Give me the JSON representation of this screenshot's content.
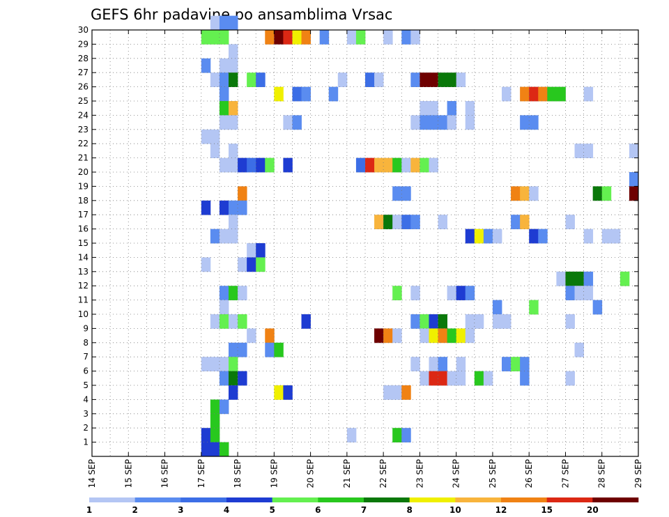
{
  "chart_data": {
    "type": "heatmap",
    "title": "GEFS 6hr padavine po ansamblima Vrsac",
    "xlabel": "",
    "ylabel": "",
    "x_tick_labels": [
      "14 SEP",
      "15 SEP",
      "16 SEP",
      "17 SEP",
      "18 SEP",
      "19 SEP",
      "20 SEP",
      "21 SEP",
      "22 SEP",
      "23 SEP",
      "24 SEP",
      "25 SEP",
      "26 SEP",
      "27 SEP",
      "28 SEP",
      "29 SEP"
    ],
    "xlim_days": [
      14,
      29
    ],
    "y_tick_labels": [
      "1",
      "2",
      "3",
      "4",
      "5",
      "6",
      "7",
      "8",
      "9",
      "10",
      "11",
      "12",
      "13",
      "14",
      "15",
      "16",
      "17",
      "18",
      "19",
      "20",
      "21",
      "22",
      "23",
      "24",
      "25",
      "26",
      "27",
      "28",
      "29",
      "30"
    ],
    "ylim": [
      0,
      30
    ],
    "grid": true,
    "legend": {
      "placement": "bottom",
      "bounds": [
        1,
        2,
        3,
        4,
        5,
        6,
        7,
        8,
        10,
        12,
        15,
        20
      ],
      "labels": [
        "1",
        "2",
        "3",
        "4",
        "5",
        "6",
        "7",
        "8",
        "10",
        "12",
        "15",
        "20"
      ],
      "colors": [
        "#b4c6f4",
        "#5a8cf0",
        "#3c6ee6",
        "#1e3cd2",
        "#64f050",
        "#28c81e",
        "#0a780a",
        "#f0f000",
        "#f8b43c",
        "#f08214",
        "#dc2814",
        "#6e0000"
      ]
    },
    "cells": [
      [
        30,
        17.25,
        0
      ],
      [
        30,
        17.5,
        1
      ],
      [
        30,
        17.75,
        1
      ],
      [
        29,
        17,
        4
      ],
      [
        29,
        17.25,
        4
      ],
      [
        29,
        17.5,
        4
      ],
      [
        29,
        18.75,
        9
      ],
      [
        29,
        19,
        11
      ],
      [
        29,
        19.25,
        10
      ],
      [
        29,
        19.5,
        7
      ],
      [
        29,
        19.75,
        9
      ],
      [
        29,
        20.25,
        1
      ],
      [
        29,
        21,
        0
      ],
      [
        29,
        21.25,
        4
      ],
      [
        29,
        22,
        0
      ],
      [
        29,
        22.5,
        1
      ],
      [
        29,
        22.75,
        0
      ],
      [
        28,
        17.75,
        0
      ],
      [
        27,
        17,
        1
      ],
      [
        27,
        17.5,
        0
      ],
      [
        27,
        17.75,
        0
      ],
      [
        26,
        17.25,
        0
      ],
      [
        26,
        17.5,
        1
      ],
      [
        26,
        17.75,
        6
      ],
      [
        26,
        18.25,
        4
      ],
      [
        26,
        18.5,
        2
      ],
      [
        26,
        20.75,
        0
      ],
      [
        26,
        21.5,
        2
      ],
      [
        26,
        21.75,
        0
      ],
      [
        26,
        22.75,
        1
      ],
      [
        26,
        23,
        11
      ],
      [
        26,
        23.25,
        11
      ],
      [
        26,
        23.5,
        6
      ],
      [
        26,
        23.75,
        6
      ],
      [
        26,
        24,
        0
      ],
      [
        25,
        17.5,
        1
      ],
      [
        25,
        19,
        7
      ],
      [
        25,
        19.5,
        2
      ],
      [
        25,
        19.75,
        1
      ],
      [
        25,
        20.5,
        1
      ],
      [
        25,
        25.25,
        0
      ],
      [
        25,
        25.75,
        9
      ],
      [
        25,
        26,
        10
      ],
      [
        25,
        26.25,
        9
      ],
      [
        25,
        26.5,
        5
      ],
      [
        25,
        26.75,
        5
      ],
      [
        25,
        27.5,
        0
      ],
      [
        24,
        17.5,
        5
      ],
      [
        24,
        17.75,
        8
      ],
      [
        24,
        23,
        0
      ],
      [
        24,
        23.25,
        0
      ],
      [
        24,
        23.75,
        1
      ],
      [
        24,
        24.25,
        0
      ],
      [
        23,
        17.5,
        0
      ],
      [
        23,
        17.75,
        0
      ],
      [
        23,
        19.25,
        0
      ],
      [
        23,
        19.5,
        1
      ],
      [
        23,
        22.75,
        0
      ],
      [
        23,
        23,
        1
      ],
      [
        23,
        23.25,
        1
      ],
      [
        23,
        23.5,
        1
      ],
      [
        23,
        23.75,
        0
      ],
      [
        23,
        24.25,
        0
      ],
      [
        23,
        25.75,
        1
      ],
      [
        23,
        26,
        1
      ],
      [
        22,
        17,
        0
      ],
      [
        22,
        17.25,
        0
      ],
      [
        21,
        17.25,
        0
      ],
      [
        21,
        17.75,
        0
      ],
      [
        21,
        27.25,
        0
      ],
      [
        21,
        27.5,
        0
      ],
      [
        21,
        28.75,
        0
      ],
      [
        20,
        17.5,
        0
      ],
      [
        20,
        17.75,
        0
      ],
      [
        20,
        18,
        3
      ],
      [
        20,
        18.25,
        2
      ],
      [
        20,
        18.5,
        3
      ],
      [
        20,
        18.75,
        4
      ],
      [
        20,
        19.25,
        3
      ],
      [
        20,
        21.25,
        2
      ],
      [
        20,
        21.5,
        10
      ],
      [
        20,
        21.75,
        8
      ],
      [
        20,
        22,
        8
      ],
      [
        20,
        22.25,
        5
      ],
      [
        20,
        22.5,
        0
      ],
      [
        20,
        22.75,
        8
      ],
      [
        20,
        23,
        4
      ],
      [
        20,
        23.25,
        0
      ],
      [
        19,
        28.75,
        1
      ],
      [
        18,
        18,
        9
      ],
      [
        18,
        22.25,
        1
      ],
      [
        18,
        22.5,
        1
      ],
      [
        18,
        25.5,
        9
      ],
      [
        18,
        25.75,
        8
      ],
      [
        18,
        26,
        0
      ],
      [
        18,
        27.75,
        6
      ],
      [
        18,
        28,
        4
      ],
      [
        18,
        28.75,
        11
      ],
      [
        17,
        17,
        3
      ],
      [
        17,
        17.5,
        3
      ],
      [
        17,
        17.75,
        1
      ],
      [
        17,
        18,
        1
      ],
      [
        16,
        17.75,
        0
      ],
      [
        16,
        21.75,
        8
      ],
      [
        16,
        22,
        6
      ],
      [
        16,
        22.25,
        0
      ],
      [
        16,
        22.5,
        2
      ],
      [
        16,
        22.75,
        1
      ],
      [
        16,
        23.5,
        0
      ],
      [
        16,
        25.5,
        1
      ],
      [
        16,
        25.75,
        8
      ],
      [
        16,
        27,
        0
      ],
      [
        15,
        17.25,
        1
      ],
      [
        15,
        17.5,
        0
      ],
      [
        15,
        17.75,
        0
      ],
      [
        15,
        24.25,
        3
      ],
      [
        15,
        24.5,
        7
      ],
      [
        15,
        24.75,
        1
      ],
      [
        15,
        25,
        0
      ],
      [
        15,
        26,
        3
      ],
      [
        15,
        26.25,
        1
      ],
      [
        15,
        27.5,
        0
      ],
      [
        15,
        28,
        0
      ],
      [
        15,
        28.25,
        0
      ],
      [
        14,
        18.25,
        0
      ],
      [
        14,
        18.5,
        3
      ],
      [
        13,
        17,
        0
      ],
      [
        13,
        18,
        0
      ],
      [
        13,
        18.25,
        3
      ],
      [
        13,
        18.5,
        4
      ],
      [
        12,
        26.75,
        0
      ],
      [
        12,
        27,
        6
      ],
      [
        12,
        27.25,
        6
      ],
      [
        12,
        27.5,
        1
      ],
      [
        12,
        28.5,
        4
      ],
      [
        11,
        17.5,
        1
      ],
      [
        11,
        17.75,
        5
      ],
      [
        11,
        18,
        0
      ],
      [
        11,
        22.25,
        4
      ],
      [
        11,
        22.75,
        0
      ],
      [
        11,
        23.75,
        0
      ],
      [
        11,
        24,
        3
      ],
      [
        11,
        24.25,
        1
      ],
      [
        11,
        27,
        1
      ],
      [
        11,
        27.25,
        0
      ],
      [
        11,
        27.5,
        0
      ],
      [
        10,
        17.5,
        0
      ],
      [
        10,
        25,
        1
      ],
      [
        10,
        26,
        4
      ],
      [
        10,
        27.75,
        1
      ],
      [
        9,
        17.25,
        0
      ],
      [
        9,
        17.5,
        4
      ],
      [
        9,
        17.75,
        0
      ],
      [
        9,
        18,
        4
      ],
      [
        9,
        19.75,
        3
      ],
      [
        9,
        22.75,
        1
      ],
      [
        9,
        23,
        4
      ],
      [
        9,
        23.25,
        3
      ],
      [
        9,
        23.5,
        6
      ],
      [
        9,
        24.25,
        0
      ],
      [
        9,
        24.5,
        0
      ],
      [
        9,
        25,
        0
      ],
      [
        9,
        25.25,
        0
      ],
      [
        9,
        27,
        0
      ],
      [
        8,
        18.25,
        0
      ],
      [
        8,
        18.75,
        9
      ],
      [
        8,
        21.75,
        11
      ],
      [
        8,
        22,
        9
      ],
      [
        8,
        22.25,
        0
      ],
      [
        8,
        23,
        0
      ],
      [
        8,
        23.25,
        7
      ],
      [
        8,
        23.5,
        9
      ],
      [
        8,
        23.75,
        5
      ],
      [
        8,
        24,
        7
      ],
      [
        8,
        24.25,
        0
      ],
      [
        7,
        17.75,
        1
      ],
      [
        7,
        18,
        1
      ],
      [
        7,
        18.75,
        1
      ],
      [
        7,
        19,
        5
      ],
      [
        7,
        27.25,
        0
      ],
      [
        6,
        17,
        0
      ],
      [
        6,
        17.25,
        0
      ],
      [
        6,
        17.5,
        0
      ],
      [
        6,
        17.75,
        4
      ],
      [
        6,
        22.75,
        0
      ],
      [
        6,
        23.25,
        0
      ],
      [
        6,
        23.5,
        1
      ],
      [
        6,
        24,
        0
      ],
      [
        6,
        25.25,
        1
      ],
      [
        6,
        25.5,
        4
      ],
      [
        6,
        25.75,
        1
      ],
      [
        5,
        17.5,
        1
      ],
      [
        5,
        17.75,
        6
      ],
      [
        5,
        18,
        3
      ],
      [
        5,
        23,
        0
      ],
      [
        5,
        23.25,
        10
      ],
      [
        5,
        23.5,
        10
      ],
      [
        5,
        23.75,
        0
      ],
      [
        5,
        24,
        0
      ],
      [
        5,
        24.5,
        5
      ],
      [
        5,
        24.75,
        0
      ],
      [
        5,
        25.75,
        1
      ],
      [
        5,
        27,
        0
      ],
      [
        4,
        17.75,
        3
      ],
      [
        4,
        19,
        7
      ],
      [
        4,
        19.25,
        3
      ],
      [
        4,
        22,
        0
      ],
      [
        4,
        22.25,
        0
      ],
      [
        4,
        22.5,
        9
      ],
      [
        3,
        17.25,
        5
      ],
      [
        3,
        17.5,
        1
      ],
      [
        2,
        17.25,
        5
      ],
      [
        1,
        17,
        3
      ],
      [
        1,
        17.25,
        5
      ],
      [
        1,
        21,
        0
      ],
      [
        1,
        22.25,
        5
      ],
      [
        1,
        22.5,
        1
      ],
      [
        0,
        17,
        3
      ],
      [
        0,
        17.25,
        3
      ],
      [
        0,
        17.5,
        5
      ]
    ]
  }
}
